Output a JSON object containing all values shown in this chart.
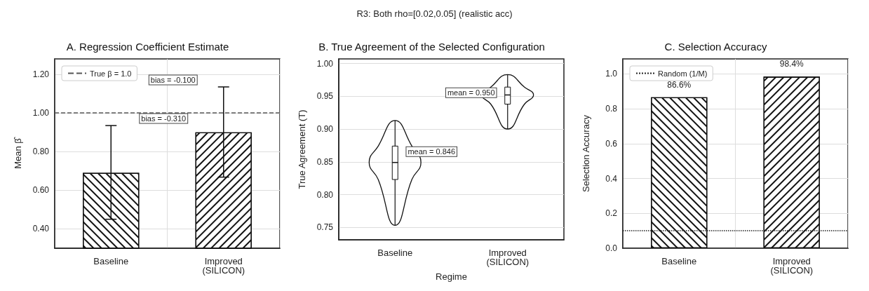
{
  "chart_data": [
    {
      "type": "other",
      "title": "R3: Both rho=[0.02,0.05] (realistic acc)"
    },
    {
      "type": "bar",
      "title": "A. Regression Coefficient Estimate",
      "ylabel": "Mean β̂",
      "categories": [
        "Baseline",
        "Improved\n(SILICON)"
      ],
      "values": [
        0.69,
        0.9
      ],
      "errors": [
        [
          0.45,
          0.935
        ],
        [
          0.668,
          1.135
        ]
      ],
      "color": "#ffffff",
      "ylim": [
        0.3,
        1.28
      ],
      "yticks": [
        {
          "value": 0.4,
          "label": "0.40"
        },
        {
          "value": 0.6,
          "label": "0.60"
        },
        {
          "value": 0.8,
          "label": "0.80"
        },
        {
          "value": 1.0,
          "label": "1.00"
        },
        {
          "value": 1.2,
          "label": "1.20"
        }
      ],
      "grid": true,
      "legend": "top left",
      "ref_lines": [
        {
          "axis": "y",
          "value": 1.0,
          "label": "True β = 1.0",
          "line_style": "dashed",
          "color": "#555555"
        }
      ],
      "annotations": [
        "bias = -0.310",
        "bias = -0.100"
      ]
    },
    {
      "type": "box",
      "title": "B. True Agreement of the Selected Configuration",
      "ylabel": "True Agreement (T)",
      "xlabel": "Regime",
      "categories": [
        "Baseline",
        "Improved\n(SILICON)"
      ],
      "color": "#ffffff",
      "boxes": [
        {
          "low": 0.753,
          "q1": 0.823,
          "median": 0.849,
          "q3": 0.874,
          "high": 0.913
        },
        {
          "low": 0.9,
          "q1": 0.938,
          "median": 0.952,
          "q3": 0.964,
          "high": 0.983
        }
      ],
      "ylim": [
        0.731,
        1.007
      ],
      "yticks": [
        0.75,
        {
          "value": 0.8,
          "label": "0.80"
        },
        0.85,
        {
          "value": 0.9,
          "label": "0.90"
        },
        0.95,
        {
          "value": 1.0,
          "label": "1.00"
        }
      ],
      "grid": "y",
      "annotations": [
        "mean = 0.846",
        "mean = 0.950"
      ]
    },
    {
      "type": "bar",
      "title": "C. Selection Accuracy",
      "ylabel": "Selection Accuracy",
      "categories": [
        "Baseline",
        "Improved\n(SILICON)"
      ],
      "values": [
        0.866,
        0.984
      ],
      "value_labels": [
        "86.6%",
        "98.4%"
      ],
      "color": "#ffffff",
      "ylim": [
        0,
        1.086
      ],
      "yticks": [
        {
          "value": 0,
          "label": "0.0"
        },
        {
          "value": 0.2,
          "label": "0.2"
        },
        {
          "value": 0.4,
          "label": "0.4"
        },
        {
          "value": 0.6,
          "label": "0.6"
        },
        {
          "value": 0.8,
          "label": "0.8"
        },
        {
          "value": 1.0,
          "label": "1.0"
        }
      ],
      "grid": true,
      "legend": "top left",
      "ref_lines": [
        {
          "axis": "y",
          "value": 0.1,
          "label": "Random (1/M)",
          "line_style": "dotted",
          "color": "#222222"
        }
      ]
    }
  ]
}
